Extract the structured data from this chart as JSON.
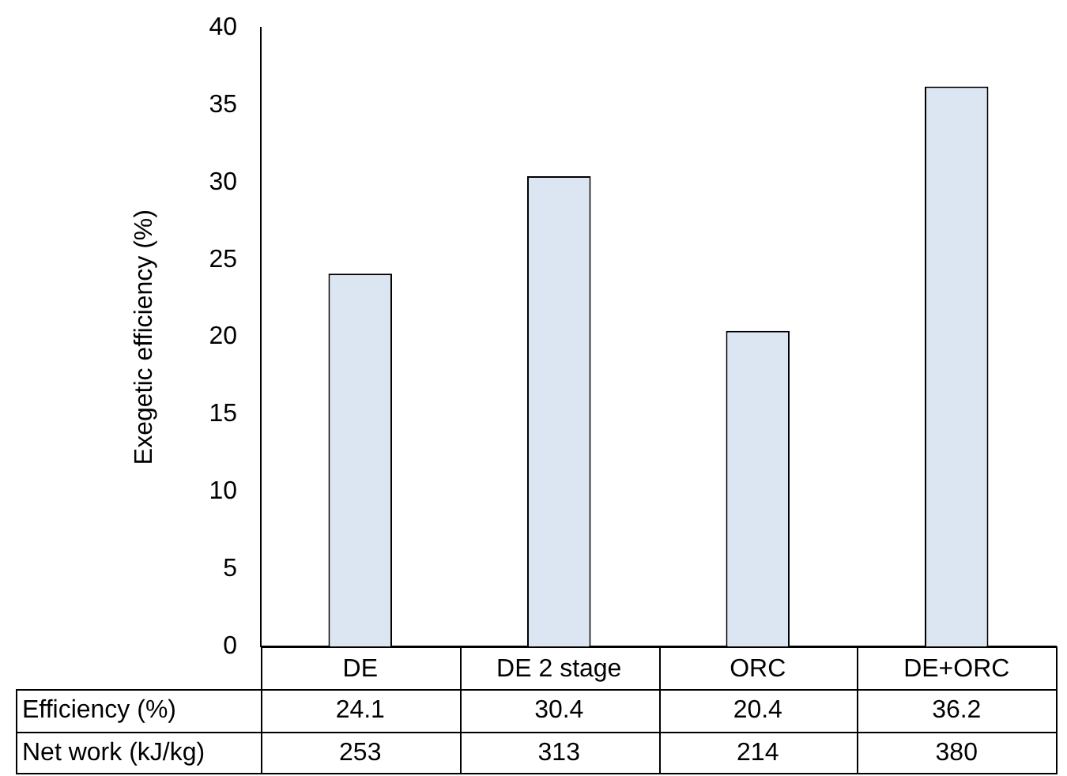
{
  "chart_data": {
    "type": "bar",
    "ylabel": "Exegetic efficiency (%)",
    "categories": [
      "DE",
      "DE 2 stage",
      "ORC",
      "DE+ORC"
    ],
    "series": [
      {
        "name": "Efficiency (%)",
        "color": "#dce6f2",
        "values": [
          24.1,
          30.4,
          20.4,
          36.2
        ]
      }
    ],
    "ylim": [
      0,
      40
    ],
    "yticks": [
      0,
      5,
      10,
      15,
      20,
      25,
      30,
      35,
      40
    ],
    "data_labels": true,
    "grid": false,
    "legend": false,
    "annotations": [
      "Net work (kJ/kg)",
      "253",
      "313",
      "214",
      "380"
    ]
  }
}
